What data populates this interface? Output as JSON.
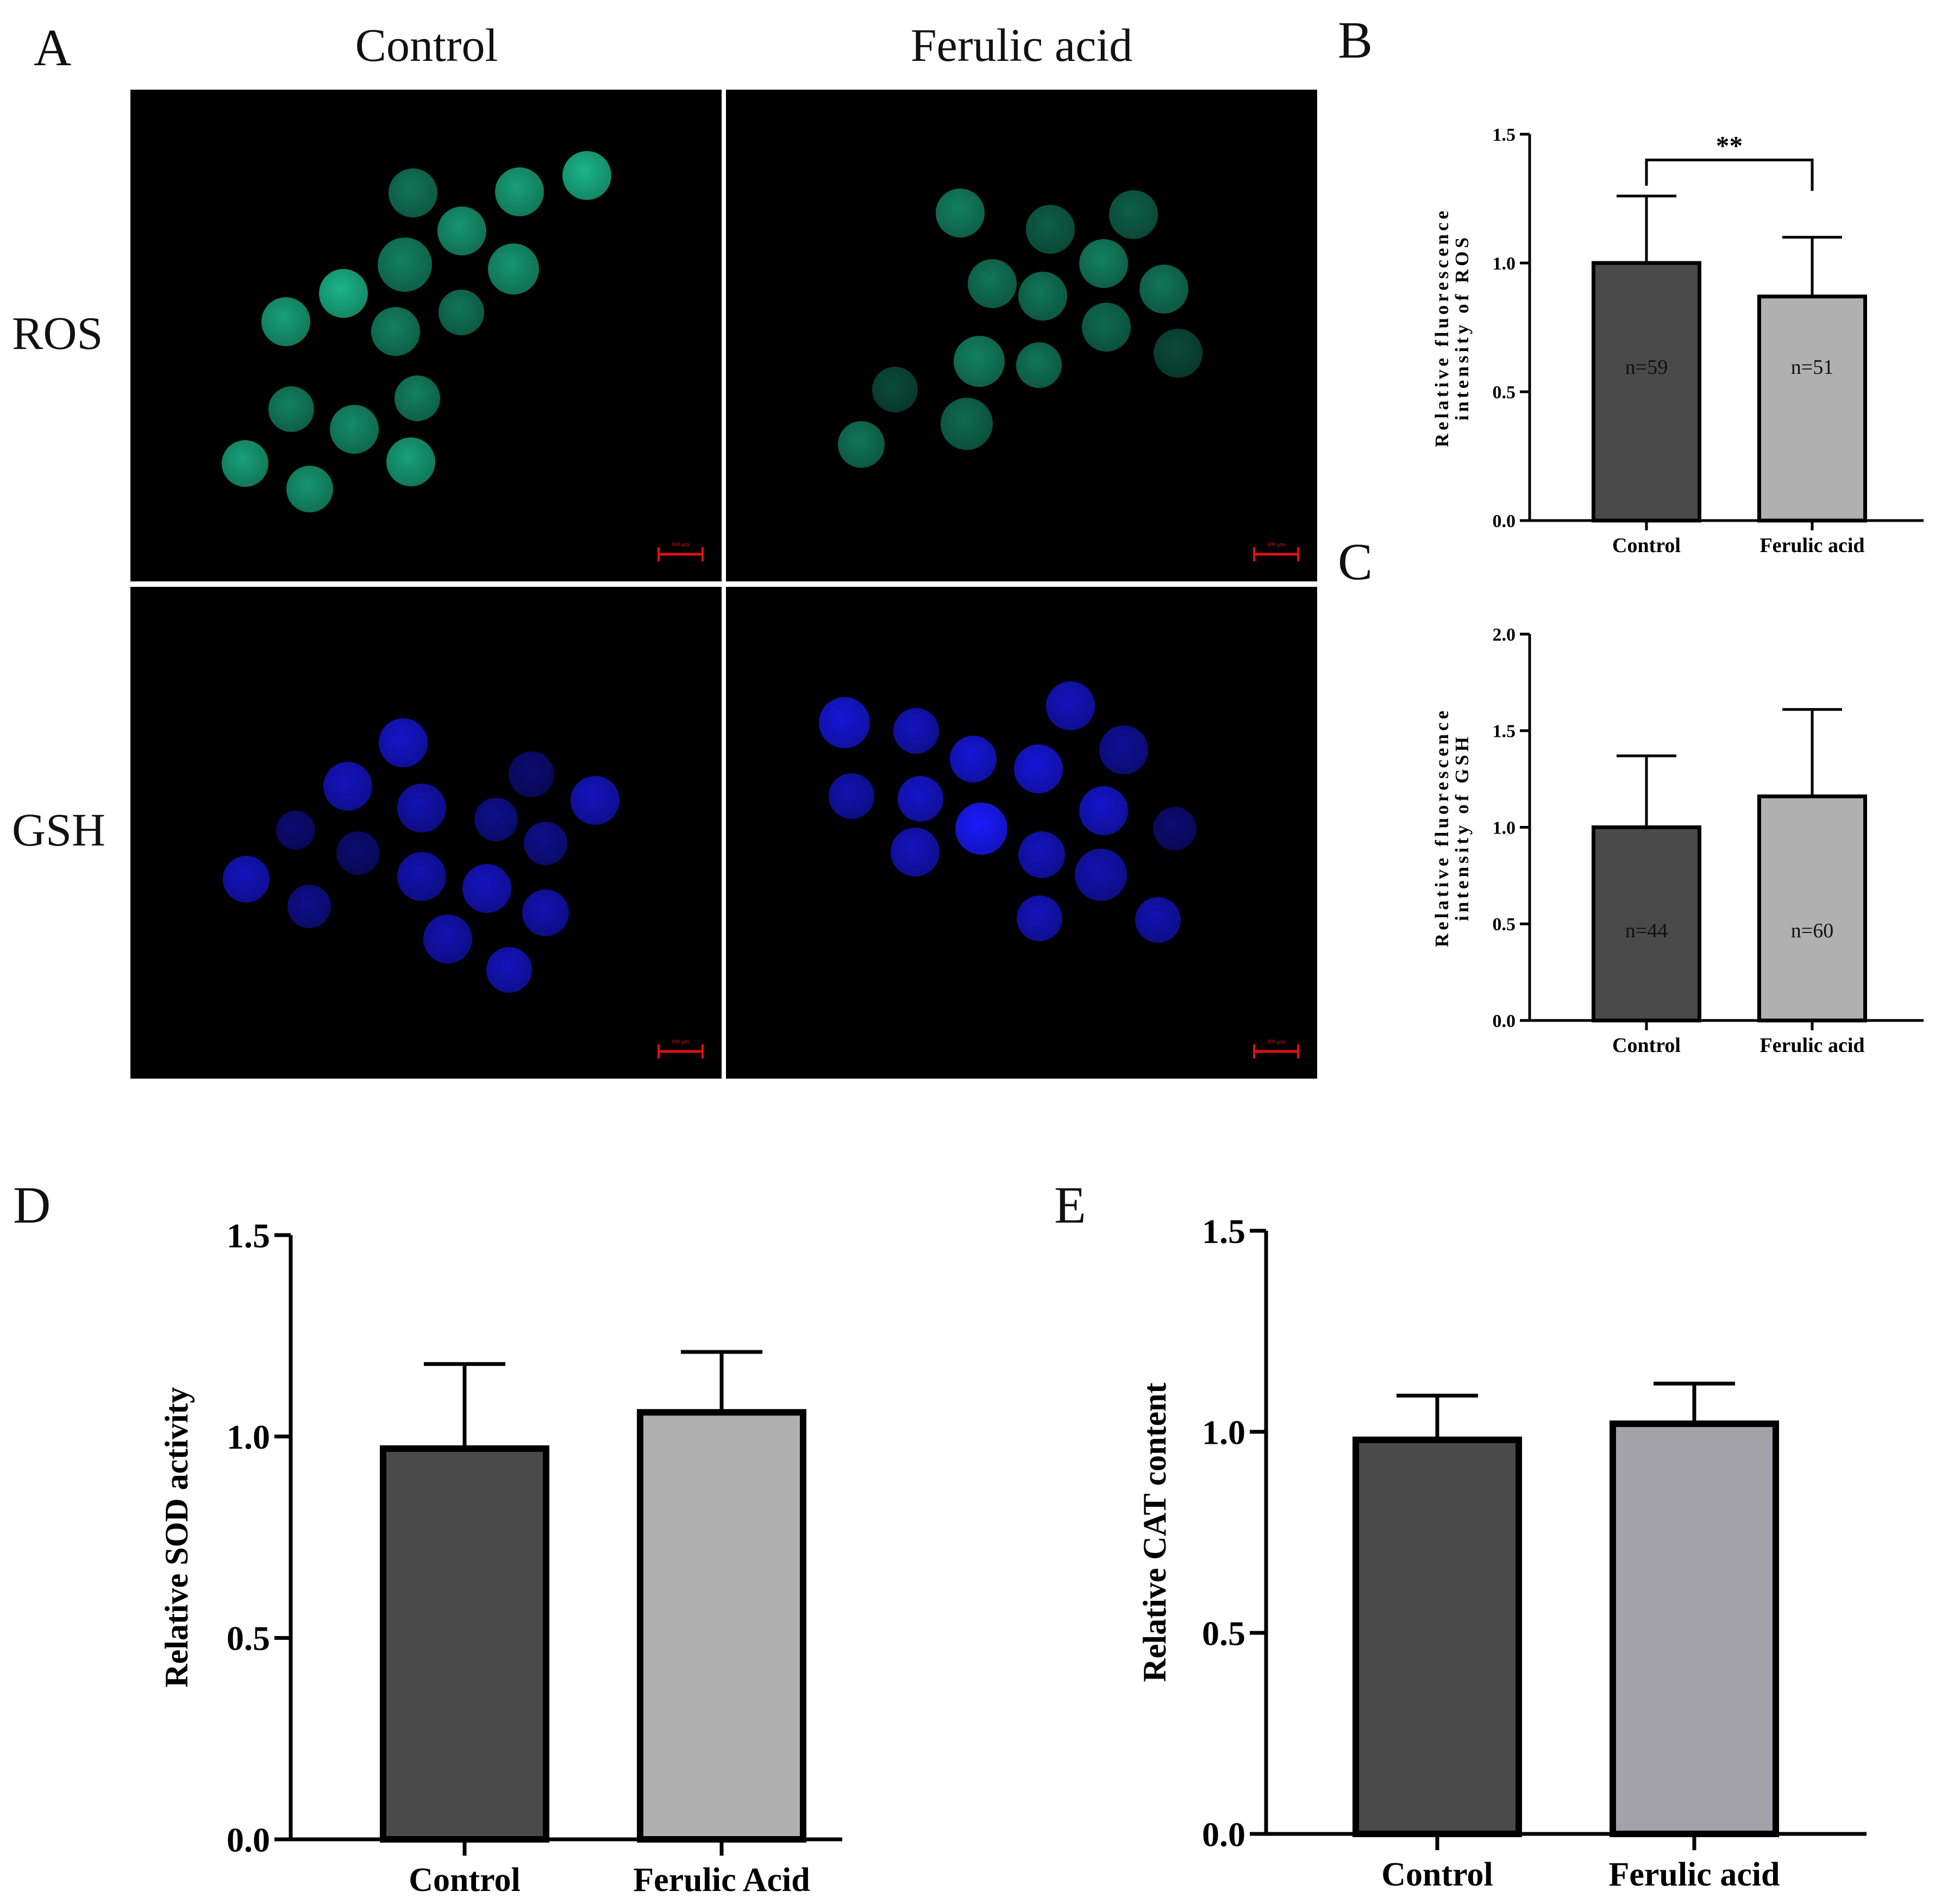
{
  "panel_letters": {
    "a": "A",
    "b": "B",
    "c": "C",
    "d": "D",
    "e": "E"
  },
  "microscopy": {
    "columns": [
      "Control",
      "Ferulic acid"
    ],
    "rows": [
      "ROS",
      "GSH"
    ],
    "scale_bar": "100 μm",
    "colors": {
      "ros": "#1fd6a0",
      "gsh": "#1a1aff",
      "scale": "#e01010"
    }
  },
  "chart_data": [
    {
      "id": "B",
      "type": "bar",
      "categories": [
        "Control",
        "Ferulic acid"
      ],
      "values": [
        1.0,
        0.87
      ],
      "errors": [
        0.26,
        0.23
      ],
      "n_labels": [
        "n=59",
        "n=51"
      ],
      "ylabel_line1": "Relative fluorescence",
      "ylabel_line2": "intensity of ROS",
      "ylim": [
        0,
        1.5
      ],
      "ticks": [
        "0.0",
        "0.5",
        "1.0",
        "1.5"
      ],
      "significance": "**",
      "colors": [
        "#4a4a4a",
        "#b0b0b0"
      ]
    },
    {
      "id": "C",
      "type": "bar",
      "categories": [
        "Control",
        "Ferulic acid"
      ],
      "values": [
        1.0,
        1.16
      ],
      "errors": [
        0.37,
        0.45
      ],
      "n_labels": [
        "n=44",
        "n=60"
      ],
      "ylabel_line1": "Relative fluorescence",
      "ylabel_line2": "intensity of GSH",
      "ylim": [
        0,
        2.0
      ],
      "ticks": [
        "0.0",
        "0.5",
        "1.0",
        "1.5",
        "2.0"
      ],
      "colors": [
        "#4a4a4a",
        "#b0b0b0"
      ]
    },
    {
      "id": "D",
      "type": "bar",
      "categories": [
        "Control",
        "Ferulic Acid"
      ],
      "values": [
        0.97,
        1.06
      ],
      "errors": [
        0.21,
        0.15
      ],
      "ylabel": "Relative SOD activity",
      "ylim": [
        0,
        1.5
      ],
      "ticks": [
        "0.0",
        "0.5",
        "1.0",
        "1.5"
      ],
      "colors": [
        "#4a4a4a",
        "#b0b0b0"
      ]
    },
    {
      "id": "E",
      "type": "bar",
      "categories": [
        "Control",
        "Ferulic acid"
      ],
      "values": [
        0.98,
        1.02
      ],
      "errors": [
        0.11,
        0.1
      ],
      "ylabel": "Relative CAT content",
      "ylim": [
        0,
        1.5
      ],
      "ticks": [
        "0.0",
        "0.5",
        "1.0",
        "1.5"
      ],
      "colors": [
        "#4a4a4a",
        "#a2a2a8"
      ]
    }
  ]
}
